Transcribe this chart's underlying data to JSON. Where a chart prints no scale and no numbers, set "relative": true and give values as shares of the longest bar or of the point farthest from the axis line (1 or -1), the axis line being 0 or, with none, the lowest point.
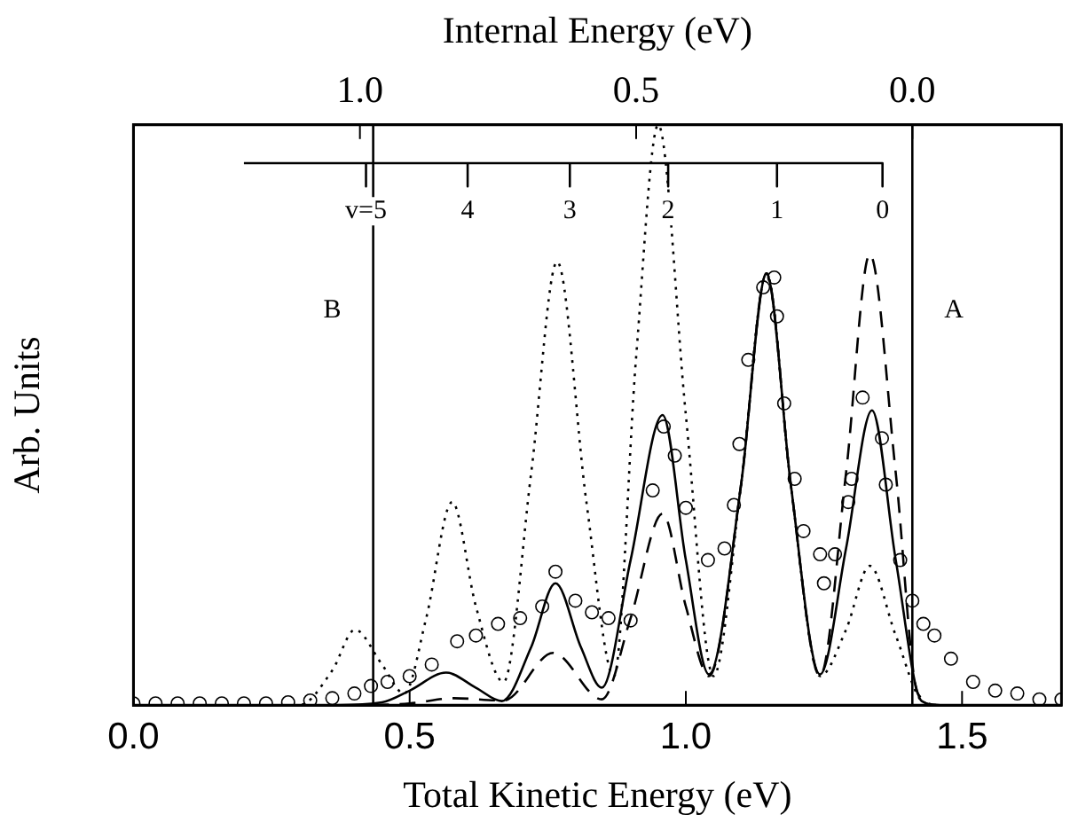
{
  "chart_data": {
    "type": "line",
    "relative": true,
    "xlabel": "Total Kinetic Energy (eV)",
    "ylabel": "Arb. Units",
    "x2label": "Internal Energy (eV)",
    "xlim": [
      0,
      1.68
    ],
    "xticks": [
      {
        "value": 0,
        "label": "0.0"
      },
      {
        "value": 0.5,
        "label": "0.5"
      },
      {
        "value": 1,
        "label": "1.0"
      },
      {
        "value": 1.5,
        "label": "1.5"
      }
    ],
    "x2lim": [
      1.41,
      -0.27
    ],
    "x2ticks": [
      {
        "value": 1,
        "label": "1.0"
      },
      {
        "value": 0.5,
        "label": "0.5"
      },
      {
        "value": 0,
        "label": "0.0"
      }
    ],
    "legend": false,
    "grid": false,
    "ref_lines": [
      {
        "axis": "x",
        "value": 0.434,
        "label": "B"
      },
      {
        "axis": "x",
        "value": 1.41,
        "label": "A"
      }
    ],
    "annotations": [
      {
        "text": "v=5",
        "x": 0.421,
        "y": 0.894
      },
      {
        "text": "4",
        "x": 0.605,
        "y": 0.894
      },
      {
        "text": "3",
        "x": 0.79,
        "y": 0.894
      },
      {
        "text": "2",
        "x": 0.968,
        "y": 0.894
      },
      {
        "text": "1",
        "x": 1.165,
        "y": 0.894
      },
      {
        "text": "0",
        "x": 1.356,
        "y": 0.894
      }
    ],
    "series": [
      {
        "type": "scatter",
        "marker": "circle",
        "color": "#000000",
        "x": [
          0,
          0.04,
          0.08,
          0.12,
          0.16,
          0.2,
          0.24,
          0.28,
          0.32,
          0.36,
          0.4,
          0.43,
          0.46,
          0.5,
          0.54,
          0.586,
          0.62,
          0.66,
          0.7,
          0.74,
          0.764,
          0.8,
          0.83,
          0.86,
          0.9,
          0.94,
          0.96,
          0.98,
          1.0,
          1.04,
          1.07,
          1.087,
          1.097,
          1.113,
          1.14,
          1.16,
          1.165,
          1.178,
          1.197,
          1.213,
          1.243,
          1.25,
          1.27,
          1.294,
          1.3,
          1.32,
          1.355,
          1.362,
          1.388,
          1.41,
          1.43,
          1.45,
          1.48,
          1.52,
          1.56,
          1.6,
          1.64,
          1.68
        ],
        "values": [
          0.003,
          0.003,
          0.003,
          0.003,
          0.003,
          0.003,
          0.003,
          0.005,
          0.008,
          0.012,
          0.02,
          0.033,
          0.04,
          0.05,
          0.07,
          0.11,
          0.12,
          0.14,
          0.15,
          0.17,
          0.23,
          0.18,
          0.16,
          0.15,
          0.146,
          0.37,
          0.48,
          0.43,
          0.34,
          0.25,
          0.27,
          0.345,
          0.45,
          0.595,
          0.72,
          0.737,
          0.67,
          0.52,
          0.39,
          0.3,
          0.26,
          0.21,
          0.26,
          0.35,
          0.39,
          0.53,
          0.46,
          0.38,
          0.25,
          0.18,
          0.14,
          0.12,
          0.08,
          0.04,
          0.025,
          0.02,
          0.01,
          0.01
        ]
      },
      {
        "type": "line",
        "line_style": "solid",
        "color": "#000000",
        "x": [
          0,
          0.35,
          0.45,
          0.5,
          0.566,
          0.62,
          0.667,
          0.72,
          0.764,
          0.81,
          0.848,
          0.9,
          0.958,
          1.0,
          1.042,
          1.1,
          1.146,
          1.19,
          1.243,
          1.29,
          1.337,
          1.38,
          1.427,
          1.46,
          1.68
        ],
        "values": [
          0,
          0,
          0.005,
          0.025,
          0.056,
          0.03,
          0.007,
          0.1,
          0.21,
          0.1,
          0.03,
          0.25,
          0.5,
          0.25,
          0.053,
          0.38,
          0.744,
          0.38,
          0.053,
          0.27,
          0.508,
          0.25,
          0.007,
          0,
          0
        ]
      },
      {
        "type": "line",
        "line_style": "dashed",
        "color": "#000000",
        "x": [
          0,
          0.4,
          0.5,
          0.58,
          0.67,
          0.76,
          0.848,
          0.9,
          0.958,
          1.0,
          1.042,
          1.1,
          1.146,
          1.19,
          1.243,
          1.29,
          1.333,
          1.38,
          1.42,
          1.46,
          1.68
        ],
        "values": [
          0,
          0,
          0.003,
          0.012,
          0.008,
          0.09,
          0.01,
          0.15,
          0.33,
          0.17,
          0.05,
          0.38,
          0.744,
          0.38,
          0.05,
          0.4,
          0.777,
          0.4,
          0.02,
          0,
          0
        ]
      },
      {
        "type": "line",
        "line_style": "dotted",
        "color": "#000000",
        "x": [
          0,
          0.3,
          0.36,
          0.401,
          0.45,
          0.49,
          0.53,
          0.577,
          0.62,
          0.67,
          0.72,
          0.767,
          0.82,
          0.87,
          0.91,
          0.95,
          1.0,
          1.05,
          1.1,
          1.146,
          1.19,
          1.243,
          1.29,
          1.333,
          1.38,
          1.43,
          1.46,
          1.68
        ],
        "values": [
          0,
          0,
          0.06,
          0.13,
          0.07,
          0.02,
          0.15,
          0.35,
          0.17,
          0.04,
          0.4,
          0.764,
          0.35,
          0.05,
          0.6,
          1.0,
          0.5,
          0.05,
          0.38,
          0.744,
          0.38,
          0.05,
          0.13,
          0.24,
          0.12,
          0.005,
          0,
          0
        ]
      },
      {
        "type": "line",
        "line_style": "solid",
        "color": "#000000",
        "x": [
          0.2,
          0.421,
          0.421,
          0.421,
          0.605,
          0.605,
          0.605,
          0.79,
          0.79,
          0.79,
          0.968,
          0.968,
          0.968,
          1.165,
          1.165,
          1.165,
          1.356,
          1.356
        ],
        "values": [
          0.934,
          0.934,
          0.894,
          0.934,
          0.934,
          0.894,
          0.934,
          0.934,
          0.894,
          0.934,
          0.934,
          0.894,
          0.934,
          0.934,
          0.894,
          0.934,
          0.934,
          0.894
        ]
      }
    ]
  }
}
